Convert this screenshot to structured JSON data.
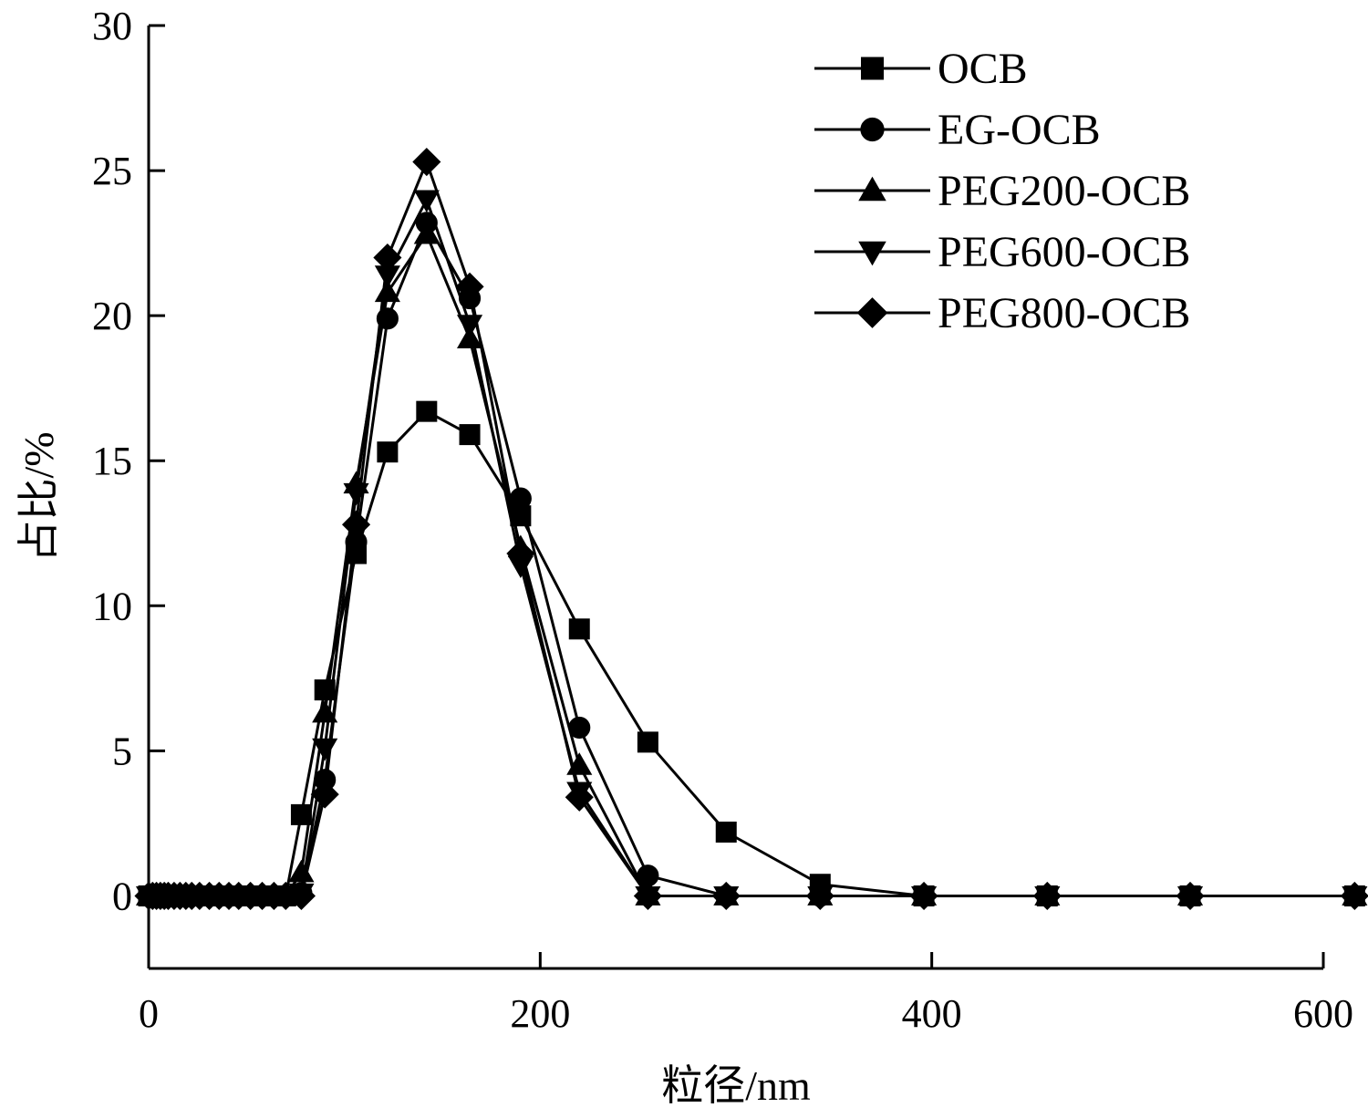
{
  "chart_data": {
    "type": "line",
    "title": "",
    "xlabel": "粒径/nm",
    "ylabel": "占比/%",
    "xlim": [
      0,
      600
    ],
    "ylim": [
      -2.5,
      30
    ],
    "xticks": [
      0,
      200,
      400,
      600
    ],
    "yticks": [
      0,
      5,
      10,
      15,
      20,
      25,
      30
    ],
    "grid": false,
    "legend_position": "top-right",
    "series": [
      {
        "name": "OCB",
        "marker": "square",
        "x": [
          0,
          2,
          4,
          6,
          8,
          10,
          13,
          16,
          19,
          22,
          26,
          31,
          36,
          41,
          46,
          52,
          58,
          64,
          70,
          78,
          90,
          106,
          122,
          142,
          164,
          190,
          220,
          255,
          295,
          343,
          396,
          459,
          532,
          616
        ],
        "y": [
          0,
          0,
          0,
          0,
          0,
          0,
          0,
          0,
          0,
          0,
          0,
          0,
          0,
          0,
          0,
          0,
          0,
          0,
          0,
          2.8,
          7.1,
          11.8,
          15.3,
          16.7,
          15.9,
          13.1,
          9.2,
          5.3,
          2.2,
          0.4,
          0,
          0,
          0,
          0
        ]
      },
      {
        "name": "EG-OCB",
        "marker": "circle",
        "x": [
          0,
          2,
          4,
          6,
          8,
          10,
          13,
          16,
          19,
          22,
          26,
          31,
          36,
          41,
          46,
          52,
          58,
          64,
          70,
          78,
          90,
          106,
          122,
          142,
          164,
          190,
          220,
          255,
          295,
          343,
          396,
          459,
          532,
          616
        ],
        "y": [
          0,
          0,
          0,
          0,
          0,
          0,
          0,
          0,
          0,
          0,
          0,
          0,
          0,
          0,
          0,
          0,
          0,
          0,
          0,
          0.1,
          4.0,
          12.2,
          19.9,
          23.2,
          20.6,
          13.7,
          5.8,
          0.7,
          0,
          0,
          0,
          0,
          0,
          0
        ]
      },
      {
        "name": "PEG200-OCB",
        "marker": "triangle-up",
        "x": [
          0,
          2,
          4,
          6,
          8,
          10,
          13,
          16,
          19,
          22,
          26,
          31,
          36,
          41,
          46,
          52,
          58,
          64,
          70,
          78,
          90,
          106,
          122,
          142,
          164,
          190,
          220,
          255,
          295,
          343,
          396,
          459,
          532,
          616
        ],
        "y": [
          0,
          0,
          0,
          0,
          0,
          0,
          0,
          0,
          0,
          0,
          0,
          0,
          0,
          0,
          0,
          0,
          0,
          0,
          0,
          0.8,
          6.3,
          14.2,
          20.8,
          22.8,
          19.2,
          12.0,
          4.5,
          0,
          0,
          0,
          0,
          0,
          0,
          0
        ]
      },
      {
        "name": "PEG600-OCB",
        "marker": "triangle-down",
        "x": [
          0,
          2,
          4,
          6,
          8,
          10,
          13,
          16,
          19,
          22,
          26,
          31,
          36,
          41,
          46,
          52,
          58,
          64,
          70,
          78,
          90,
          106,
          122,
          142,
          164,
          190,
          220,
          255,
          295,
          343,
          396,
          459,
          532,
          616
        ],
        "y": [
          0,
          0,
          0,
          0,
          0,
          0,
          0,
          0,
          0,
          0,
          0,
          0,
          0,
          0,
          0,
          0,
          0,
          0,
          0,
          0.1,
          5.1,
          13.9,
          21.4,
          24.0,
          19.7,
          11.4,
          3.6,
          0,
          0,
          0,
          0,
          0,
          0,
          0
        ]
      },
      {
        "name": "PEG800-OCB",
        "marker": "diamond",
        "x": [
          0,
          2,
          4,
          6,
          8,
          10,
          13,
          16,
          19,
          22,
          26,
          31,
          36,
          41,
          46,
          52,
          58,
          64,
          70,
          78,
          90,
          106,
          122,
          142,
          164,
          190,
          220,
          255,
          295,
          343,
          396,
          459,
          532,
          616
        ],
        "y": [
          0,
          0,
          0,
          0,
          0,
          0,
          0,
          0,
          0,
          0,
          0,
          0,
          0,
          0,
          0,
          0,
          0,
          0,
          0,
          0,
          3.5,
          12.8,
          22.0,
          25.3,
          21.0,
          11.8,
          3.4,
          0,
          0,
          0,
          0,
          0,
          0,
          0
        ]
      }
    ]
  }
}
